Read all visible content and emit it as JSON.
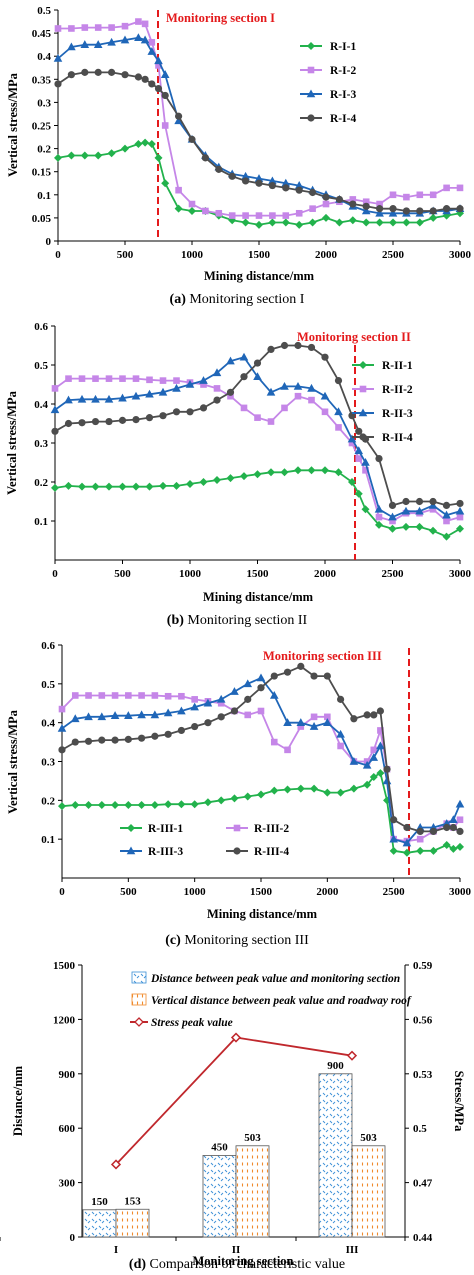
{
  "chart_data": [
    {
      "type": "line",
      "xlabel": "Mining distance/mm",
      "ylabel": "Vertical stress/MPa",
      "xlim": [
        0,
        3000
      ],
      "ylim": [
        0,
        0.5
      ],
      "xticks": [
        0,
        500,
        1000,
        1500,
        2000,
        2500,
        3000
      ],
      "yticks": [
        0,
        0.05,
        0.1,
        0.15,
        0.2,
        0.25,
        0.3,
        0.35,
        0.4,
        0.45,
        0.5
      ],
      "ytick_labels": [
        "0",
        "0.05",
        "0.1",
        "0.15",
        "0.2",
        "0.25",
        "0.3",
        "0.35",
        "0.4",
        "0.45",
        "0.5"
      ],
      "legend_position": "right",
      "annotation": {
        "text": "Monitoring section I",
        "x": 750
      },
      "caption": {
        "label": "(a)",
        "text": " Monitoring section I"
      },
      "x": [
        0,
        100,
        200,
        300,
        400,
        500,
        600,
        650,
        700,
        750,
        800,
        900,
        1000,
        1100,
        1200,
        1300,
        1400,
        1500,
        1600,
        1700,
        1800,
        1900,
        2000,
        2100,
        2200,
        2300,
        2400,
        2500,
        2600,
        2700,
        2800,
        2900,
        3000
      ],
      "series": [
        {
          "name": "R-I-1",
          "color": "#22b24c",
          "marker": "diamond",
          "values": [
            0.18,
            0.185,
            0.185,
            0.185,
            0.19,
            0.2,
            0.21,
            0.213,
            0.21,
            0.18,
            0.125,
            0.07,
            0.065,
            0.065,
            0.055,
            0.045,
            0.04,
            0.035,
            0.04,
            0.04,
            0.035,
            0.04,
            0.05,
            0.04,
            0.045,
            0.04,
            0.04,
            0.04,
            0.04,
            0.04,
            0.05,
            0.055,
            0.06
          ]
        },
        {
          "name": "R-I-2",
          "color": "#c586e8",
          "marker": "square",
          "values": [
            0.46,
            0.46,
            0.462,
            0.462,
            0.462,
            0.465,
            0.475,
            0.47,
            0.43,
            0.38,
            0.25,
            0.11,
            0.08,
            0.065,
            0.06,
            0.055,
            0.055,
            0.055,
            0.055,
            0.055,
            0.06,
            0.07,
            0.08,
            0.085,
            0.09,
            0.085,
            0.08,
            0.1,
            0.095,
            0.1,
            0.1,
            0.115,
            0.115
          ]
        },
        {
          "name": "R-I-3",
          "color": "#1f66b8",
          "marker": "triangle",
          "values": [
            0.395,
            0.42,
            0.425,
            0.425,
            0.43,
            0.435,
            0.44,
            0.435,
            0.41,
            0.39,
            0.36,
            0.26,
            0.22,
            0.185,
            0.16,
            0.145,
            0.14,
            0.135,
            0.13,
            0.125,
            0.12,
            0.11,
            0.1,
            0.09,
            0.075,
            0.065,
            0.06,
            0.06,
            0.06,
            0.06,
            0.065,
            0.065,
            0.07
          ]
        },
        {
          "name": "R-I-4",
          "color": "#4d4d4d",
          "marker": "circle",
          "values": [
            0.34,
            0.36,
            0.365,
            0.365,
            0.365,
            0.36,
            0.355,
            0.35,
            0.34,
            0.33,
            0.315,
            0.27,
            0.22,
            0.18,
            0.155,
            0.14,
            0.13,
            0.125,
            0.12,
            0.115,
            0.11,
            0.105,
            0.095,
            0.09,
            0.08,
            0.075,
            0.07,
            0.07,
            0.065,
            0.065,
            0.065,
            0.07,
            0.07
          ]
        }
      ]
    },
    {
      "type": "line",
      "xlabel": "Mining distance/mm",
      "ylabel": "Vertical stress/MPa",
      "xlim": [
        0,
        3000
      ],
      "ylim": [
        0,
        0.6
      ],
      "xticks": [
        0,
        500,
        1000,
        1500,
        2000,
        2500,
        3000
      ],
      "yticks": [
        0.1,
        0.2,
        0.3,
        0.4,
        0.5,
        0.6
      ],
      "ytick_labels": [
        "0.1",
        "0.2",
        "0.3",
        "0.4",
        "0.5",
        "0.6"
      ],
      "legend_position": "right",
      "annotation": {
        "text": "Monitoring section II",
        "x": 2250
      },
      "caption": {
        "label": "(b)",
        "text": " Monitoring section II"
      },
      "x": [
        0,
        100,
        200,
        300,
        400,
        500,
        600,
        700,
        800,
        900,
        1000,
        1100,
        1200,
        1300,
        1400,
        1500,
        1600,
        1700,
        1800,
        1900,
        2000,
        2100,
        2200,
        2250,
        2300,
        2400,
        2500,
        2600,
        2700,
        2800,
        2900,
        3000
      ],
      "series": [
        {
          "name": "R-II-1",
          "color": "#22b24c",
          "marker": "diamond",
          "values": [
            0.185,
            0.19,
            0.188,
            0.188,
            0.188,
            0.188,
            0.188,
            0.188,
            0.19,
            0.19,
            0.195,
            0.2,
            0.205,
            0.21,
            0.215,
            0.22,
            0.225,
            0.225,
            0.23,
            0.23,
            0.23,
            0.225,
            0.2,
            0.17,
            0.13,
            0.09,
            0.08,
            0.085,
            0.085,
            0.075,
            0.06,
            0.08
          ]
        },
        {
          "name": "R-II-2",
          "color": "#c586e8",
          "marker": "square",
          "values": [
            0.44,
            0.465,
            0.465,
            0.465,
            0.465,
            0.465,
            0.465,
            0.462,
            0.46,
            0.46,
            0.455,
            0.45,
            0.44,
            0.42,
            0.39,
            0.365,
            0.355,
            0.39,
            0.42,
            0.41,
            0.38,
            0.34,
            0.3,
            0.26,
            0.23,
            0.11,
            0.1,
            0.12,
            0.12,
            0.13,
            0.1,
            0.11
          ]
        },
        {
          "name": "R-II-3",
          "color": "#1f66b8",
          "marker": "triangle",
          "values": [
            0.385,
            0.41,
            0.412,
            0.412,
            0.412,
            0.415,
            0.42,
            0.425,
            0.43,
            0.44,
            0.45,
            0.46,
            0.48,
            0.51,
            0.52,
            0.47,
            0.43,
            0.445,
            0.445,
            0.44,
            0.42,
            0.38,
            0.31,
            0.28,
            0.25,
            0.13,
            0.11,
            0.125,
            0.125,
            0.14,
            0.115,
            0.125
          ]
        },
        {
          "name": "R-II-4",
          "color": "#4d4d4d",
          "marker": "circle",
          "values": [
            0.33,
            0.35,
            0.352,
            0.355,
            0.355,
            0.358,
            0.36,
            0.365,
            0.37,
            0.38,
            0.38,
            0.39,
            0.41,
            0.43,
            0.47,
            0.505,
            0.54,
            0.55,
            0.55,
            0.545,
            0.52,
            0.46,
            0.37,
            0.33,
            0.31,
            0.26,
            0.14,
            0.15,
            0.15,
            0.15,
            0.14,
            0.145
          ]
        }
      ]
    },
    {
      "type": "line",
      "xlabel": "Mining distance/mm",
      "ylabel": "Vertical stress/MPa",
      "xlim": [
        0,
        3000
      ],
      "ylim": [
        0,
        0.6
      ],
      "xticks": [
        0,
        500,
        1000,
        1500,
        2000,
        2500,
        3000
      ],
      "yticks": [
        0.1,
        0.2,
        0.3,
        0.4,
        0.5,
        0.6
      ],
      "ytick_labels": [
        "0.1",
        "0.2",
        "0.3",
        "0.4",
        "0.5",
        "0.6"
      ],
      "legend_position": "bottom-left",
      "annotation": {
        "text": "Monitoring section III",
        "x": 2700
      },
      "caption": {
        "label": "(c)",
        "text": " Monitoring section III"
      },
      "x": [
        0,
        100,
        200,
        300,
        400,
        500,
        600,
        700,
        800,
        900,
        1000,
        1100,
        1200,
        1300,
        1400,
        1500,
        1600,
        1700,
        1800,
        1900,
        2000,
        2100,
        2200,
        2300,
        2350,
        2400,
        2450,
        2500,
        2600,
        2700,
        2800,
        2900,
        2950,
        3000
      ],
      "series": [
        {
          "name": "R-III-1",
          "color": "#22b24c",
          "marker": "diamond",
          "values": [
            0.185,
            0.188,
            0.188,
            0.188,
            0.188,
            0.188,
            0.188,
            0.188,
            0.19,
            0.19,
            0.19,
            0.195,
            0.2,
            0.205,
            0.21,
            0.215,
            0.225,
            0.228,
            0.23,
            0.23,
            0.22,
            0.22,
            0.23,
            0.24,
            0.26,
            0.27,
            0.2,
            0.07,
            0.065,
            0.07,
            0.07,
            0.085,
            0.075,
            0.08
          ]
        },
        {
          "name": "R-III-2",
          "color": "#c586e8",
          "marker": "square",
          "values": [
            0.435,
            0.47,
            0.47,
            0.47,
            0.47,
            0.47,
            0.47,
            0.47,
            0.468,
            0.468,
            0.46,
            0.455,
            0.45,
            0.43,
            0.42,
            0.43,
            0.35,
            0.33,
            0.39,
            0.415,
            0.415,
            0.34,
            0.3,
            0.3,
            0.33,
            0.38,
            0.28,
            0.1,
            0.095,
            0.1,
            0.12,
            0.14,
            0.13,
            0.15
          ]
        },
        {
          "name": "R-III-3",
          "color": "#1f66b8",
          "marker": "triangle",
          "values": [
            0.385,
            0.41,
            0.415,
            0.415,
            0.418,
            0.418,
            0.42,
            0.42,
            0.425,
            0.43,
            0.44,
            0.45,
            0.46,
            0.48,
            0.5,
            0.515,
            0.47,
            0.4,
            0.4,
            0.39,
            0.4,
            0.37,
            0.3,
            0.29,
            0.31,
            0.34,
            0.25,
            0.1,
            0.09,
            0.13,
            0.13,
            0.14,
            0.15,
            0.19
          ]
        },
        {
          "name": "R-III-4",
          "color": "#4d4d4d",
          "marker": "circle",
          "values": [
            0.33,
            0.35,
            0.352,
            0.355,
            0.355,
            0.357,
            0.36,
            0.365,
            0.37,
            0.38,
            0.39,
            0.4,
            0.415,
            0.43,
            0.46,
            0.49,
            0.52,
            0.53,
            0.545,
            0.52,
            0.52,
            0.46,
            0.41,
            0.42,
            0.42,
            0.43,
            0.28,
            0.15,
            0.13,
            0.12,
            0.12,
            0.13,
            0.13,
            0.12
          ]
        }
      ]
    },
    {
      "type": "bar",
      "xlabel": "Monitoring section",
      "ylabel": "Distance/mm",
      "y2label": "Stress/MPa",
      "categories": [
        "I",
        "II",
        "III"
      ],
      "ylim": [
        0,
        1500
      ],
      "yticks": [
        0,
        300,
        600,
        900,
        1200,
        1500
      ],
      "y2lim": [
        0.44,
        0.59
      ],
      "y2ticks": [
        0.44,
        0.47,
        0.5,
        0.53,
        0.56,
        0.59
      ],
      "y2tick_labels": [
        "0.44",
        "0.47",
        "0.5",
        "0.53",
        "0.56",
        "0.59"
      ],
      "legend_position": "top",
      "caption": {
        "label": "(d)",
        "text": " Comparison of characteristic value"
      },
      "series": [
        {
          "name": "Distance between peak value and monitoring section",
          "color": "#3b8fd6",
          "values": [
            150,
            450,
            900
          ],
          "labels": [
            "150",
            "450",
            "900"
          ]
        },
        {
          "name": "Vertical distance between peak value and roadway roof",
          "color": "#f08a2c",
          "values": [
            153,
            503,
            503
          ],
          "labels": [
            "153",
            "503",
            "503"
          ]
        },
        {
          "name": "Stress peak value",
          "color": "#c0282d",
          "type": "line",
          "axis": "right",
          "values": [
            0.48,
            0.55,
            0.54
          ]
        }
      ]
    }
  ]
}
